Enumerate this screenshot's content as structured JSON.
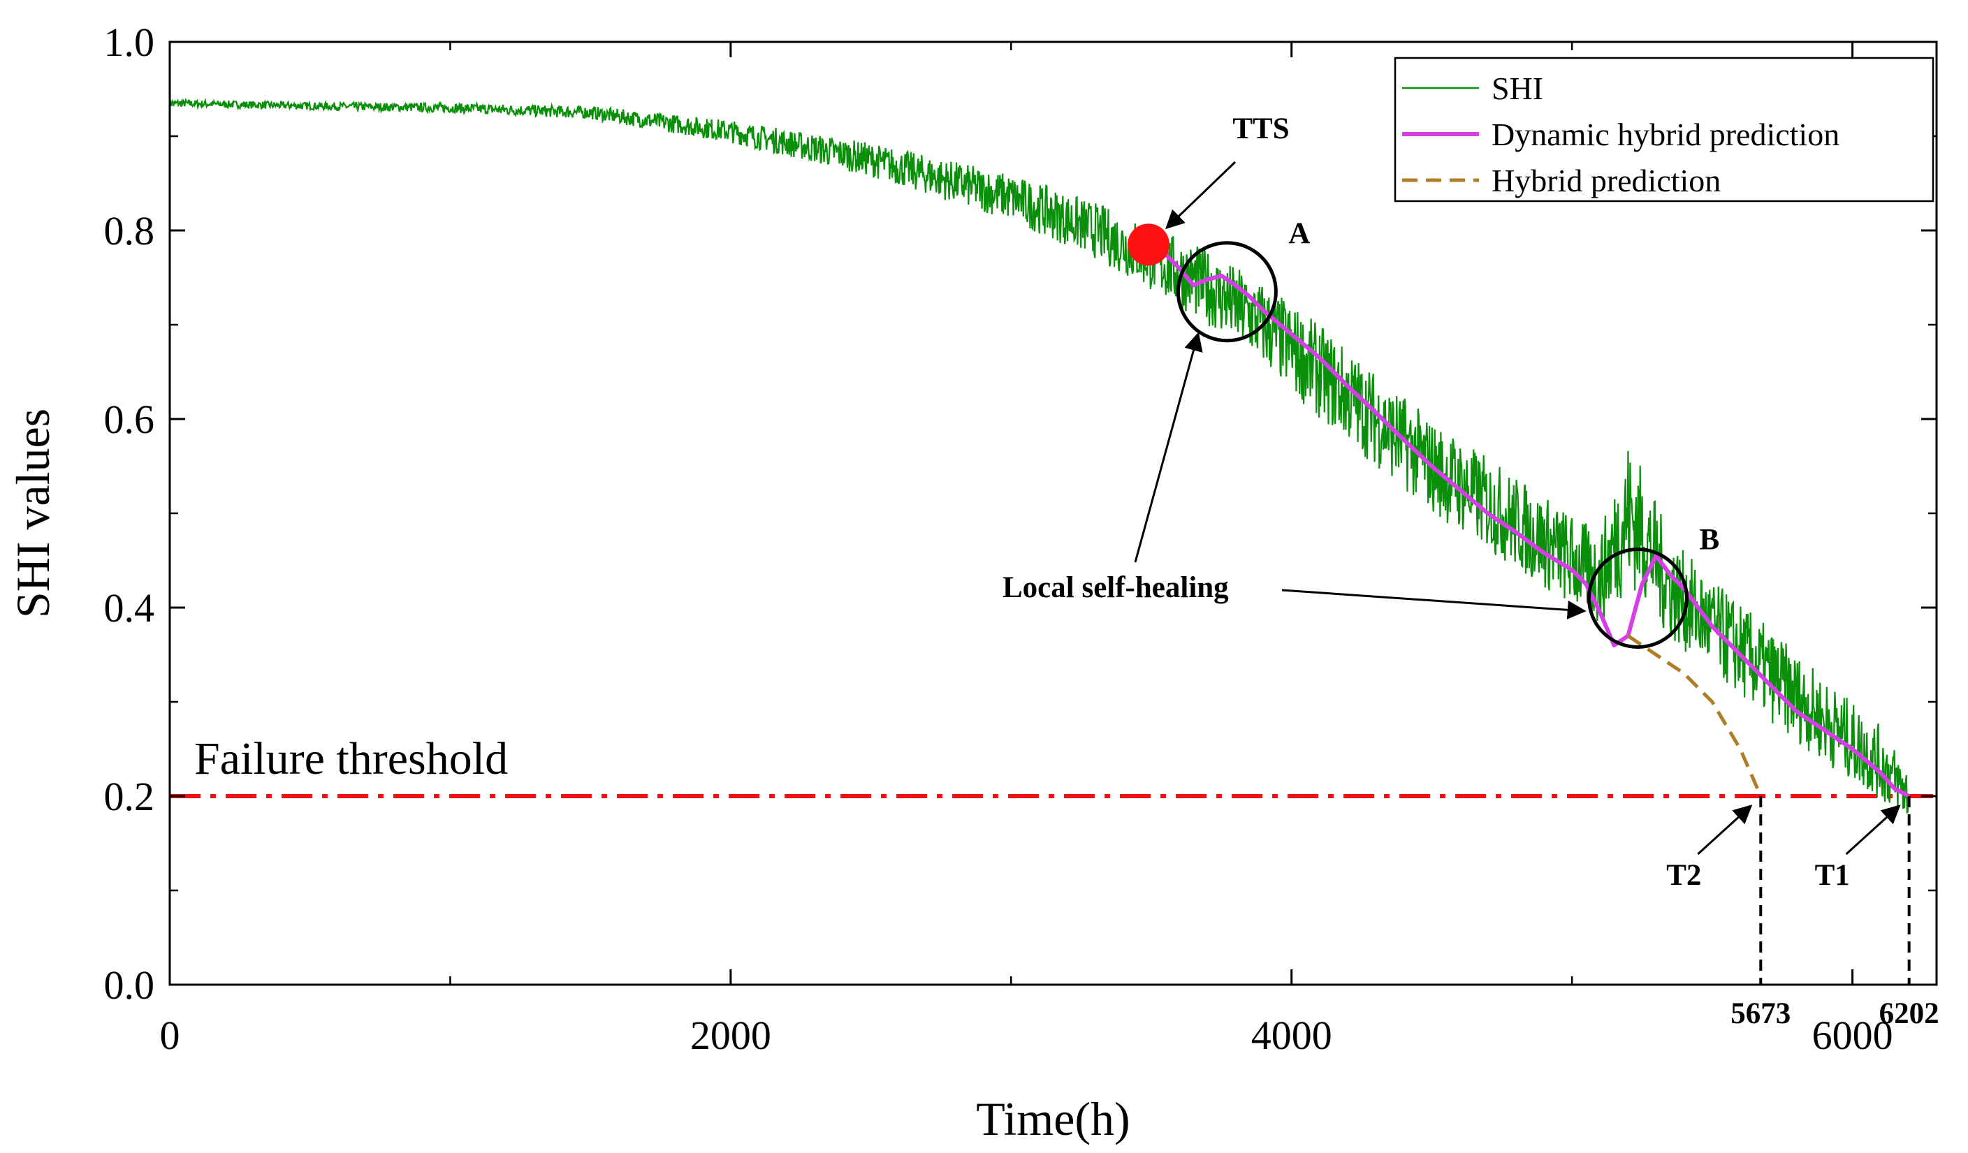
{
  "chart_data": {
    "type": "line",
    "xlabel": "Time(h)",
    "ylabel": "SHI values",
    "xlim": [
      0,
      6300
    ],
    "ylim": [
      0,
      1.0
    ],
    "x_ticks": [
      0,
      2000,
      4000,
      6000
    ],
    "x_tick_labels": [
      "0",
      "2000",
      "4000",
      "6000"
    ],
    "y_ticks": [
      0.0,
      0.2,
      0.4,
      0.6,
      0.8,
      1.0
    ],
    "y_tick_labels": [
      "0.0",
      "0.2",
      "0.4",
      "0.6",
      "0.8",
      "1.0"
    ],
    "legend": {
      "position": "top-right",
      "entries": [
        "SHI",
        "Dynamic hybrid prediction",
        "Hybrid prediction"
      ]
    },
    "colors": {
      "shi": "#0a8f0a",
      "dynamic": "#d63fe8",
      "hybrid": "#b07d25",
      "threshold": "#ee1111",
      "tts_marker": "#ff1111"
    },
    "series": [
      {
        "name": "SHI",
        "style": "noisy",
        "x": [
          0,
          500,
          1000,
          1500,
          2000,
          2500,
          3000,
          3300,
          3500,
          3700,
          3900,
          4100,
          4300,
          4500,
          4700,
          4900,
          5000,
          5100,
          5200,
          5250,
          5350,
          5500,
          5700,
          5900,
          6100,
          6202
        ],
        "y": [
          0.935,
          0.932,
          0.93,
          0.925,
          0.905,
          0.875,
          0.835,
          0.8,
          0.77,
          0.74,
          0.7,
          0.65,
          0.6,
          0.55,
          0.51,
          0.47,
          0.45,
          0.43,
          0.5,
          0.48,
          0.42,
          0.38,
          0.33,
          0.28,
          0.235,
          0.2
        ],
        "noise": [
          0.004,
          0.004,
          0.005,
          0.007,
          0.012,
          0.018,
          0.025,
          0.03,
          0.035,
          0.04,
          0.045,
          0.05,
          0.05,
          0.05,
          0.05,
          0.05,
          0.05,
          0.05,
          0.08,
          0.07,
          0.055,
          0.05,
          0.05,
          0.045,
          0.04,
          0.03
        ]
      },
      {
        "name": "Dynamic hybrid prediction",
        "x": [
          3490,
          3550,
          3600,
          3650,
          3700,
          3750,
          3800,
          3850,
          3900,
          4000,
          4100,
          4200,
          4300,
          4400,
          4500,
          4600,
          4700,
          4800,
          4900,
          5000,
          5050,
          5100,
          5150,
          5200,
          5250,
          5300,
          5350,
          5400,
          5500,
          5600,
          5700,
          5800,
          5900,
          6000,
          6100,
          6150,
          6202
        ],
        "y": [
          0.785,
          0.775,
          0.76,
          0.742,
          0.748,
          0.752,
          0.742,
          0.73,
          0.715,
          0.69,
          0.665,
          0.635,
          0.607,
          0.578,
          0.55,
          0.525,
          0.5,
          0.48,
          0.458,
          0.44,
          0.425,
          0.395,
          0.36,
          0.37,
          0.425,
          0.455,
          0.435,
          0.42,
          0.38,
          0.35,
          0.32,
          0.29,
          0.27,
          0.25,
          0.225,
          0.208,
          0.2
        ]
      },
      {
        "name": "Hybrid prediction",
        "style": "dashed",
        "x": [
          5200,
          5300,
          5400,
          5500,
          5600,
          5673
        ],
        "y": [
          0.37,
          0.35,
          0.33,
          0.3,
          0.25,
          0.2
        ]
      }
    ],
    "threshold": {
      "value": 0.2,
      "label": "Failure threshold"
    },
    "tts_point": {
      "x": 3490,
      "y": 0.785,
      "label": "TTS"
    },
    "circles": [
      {
        "label": "A",
        "x": 3770,
        "y": 0.735
      },
      {
        "label": "B",
        "x": 5235,
        "y": 0.41
      }
    ],
    "annotations": {
      "local_self_healing": "Local self-healing",
      "t1": {
        "label": "T1",
        "x": 6202,
        "value_label": "6202"
      },
      "t2": {
        "label": "T2",
        "x": 5673,
        "value_label": "5673"
      }
    }
  }
}
